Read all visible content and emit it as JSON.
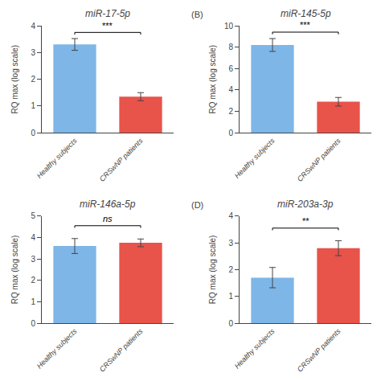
{
  "chart_data": [
    {
      "type": "bar",
      "title": "miR-17-5p",
      "categories": [
        "Healthy subjects",
        "CRSwNP patients"
      ],
      "values": [
        3.3,
        1.35
      ],
      "errors": [
        0.22,
        0.15
      ],
      "colors": [
        "#7EB6E8",
        "#E8534A"
      ],
      "ylabel": "RQ max (log scale)",
      "ylim": [
        0,
        4
      ],
      "yticks": [
        0,
        1,
        2,
        3,
        4
      ],
      "grid": false,
      "annotation": {
        "text": "***",
        "y": 3.75,
        "tick_height": 0.08
      }
    },
    {
      "type": "bar",
      "title": "miR-145-5p",
      "label": "(B)",
      "categories": [
        "Healthy subjects",
        "CRSwNP patients"
      ],
      "values": [
        8.2,
        2.9
      ],
      "errors": [
        0.6,
        0.4
      ],
      "colors": [
        "#7EB6E8",
        "#E8534A"
      ],
      "ylabel": "RQ max (log scale)",
      "ylim": [
        0,
        10
      ],
      "yticks": [
        0,
        2,
        4,
        6,
        8,
        10
      ],
      "grid": false,
      "annotation": {
        "text": "***",
        "y": 9.4,
        "tick_height": 0.2
      }
    },
    {
      "type": "bar",
      "title": "miR-146a-5p",
      "categories": [
        "Healthy subjects",
        "CRSwNP patients"
      ],
      "values": [
        3.6,
        3.75
      ],
      "errors": [
        0.35,
        0.18
      ],
      "colors": [
        "#7EB6E8",
        "#E8534A"
      ],
      "ylabel": "RQ max (log scale)",
      "ylim": [
        0,
        5
      ],
      "yticks": [
        0,
        1,
        2,
        3,
        4,
        5
      ],
      "grid": false,
      "annotation": {
        "text": "ns",
        "y": 4.55,
        "tick_height": 0.1
      }
    },
    {
      "type": "bar",
      "title": "miR-203a-3p",
      "label": "(D)",
      "categories": [
        "Healthy subjects",
        "CRSwNP patients"
      ],
      "values": [
        1.7,
        2.8
      ],
      "errors": [
        0.38,
        0.28
      ],
      "colors": [
        "#7EB6E8",
        "#E8534A"
      ],
      "ylabel": "RQ max (log scale)",
      "ylim": [
        0,
        4
      ],
      "yticks": [
        0,
        1,
        2,
        3,
        4
      ],
      "grid": false,
      "annotation": {
        "text": "**",
        "y": 3.55,
        "tick_height": 0.08
      }
    }
  ]
}
